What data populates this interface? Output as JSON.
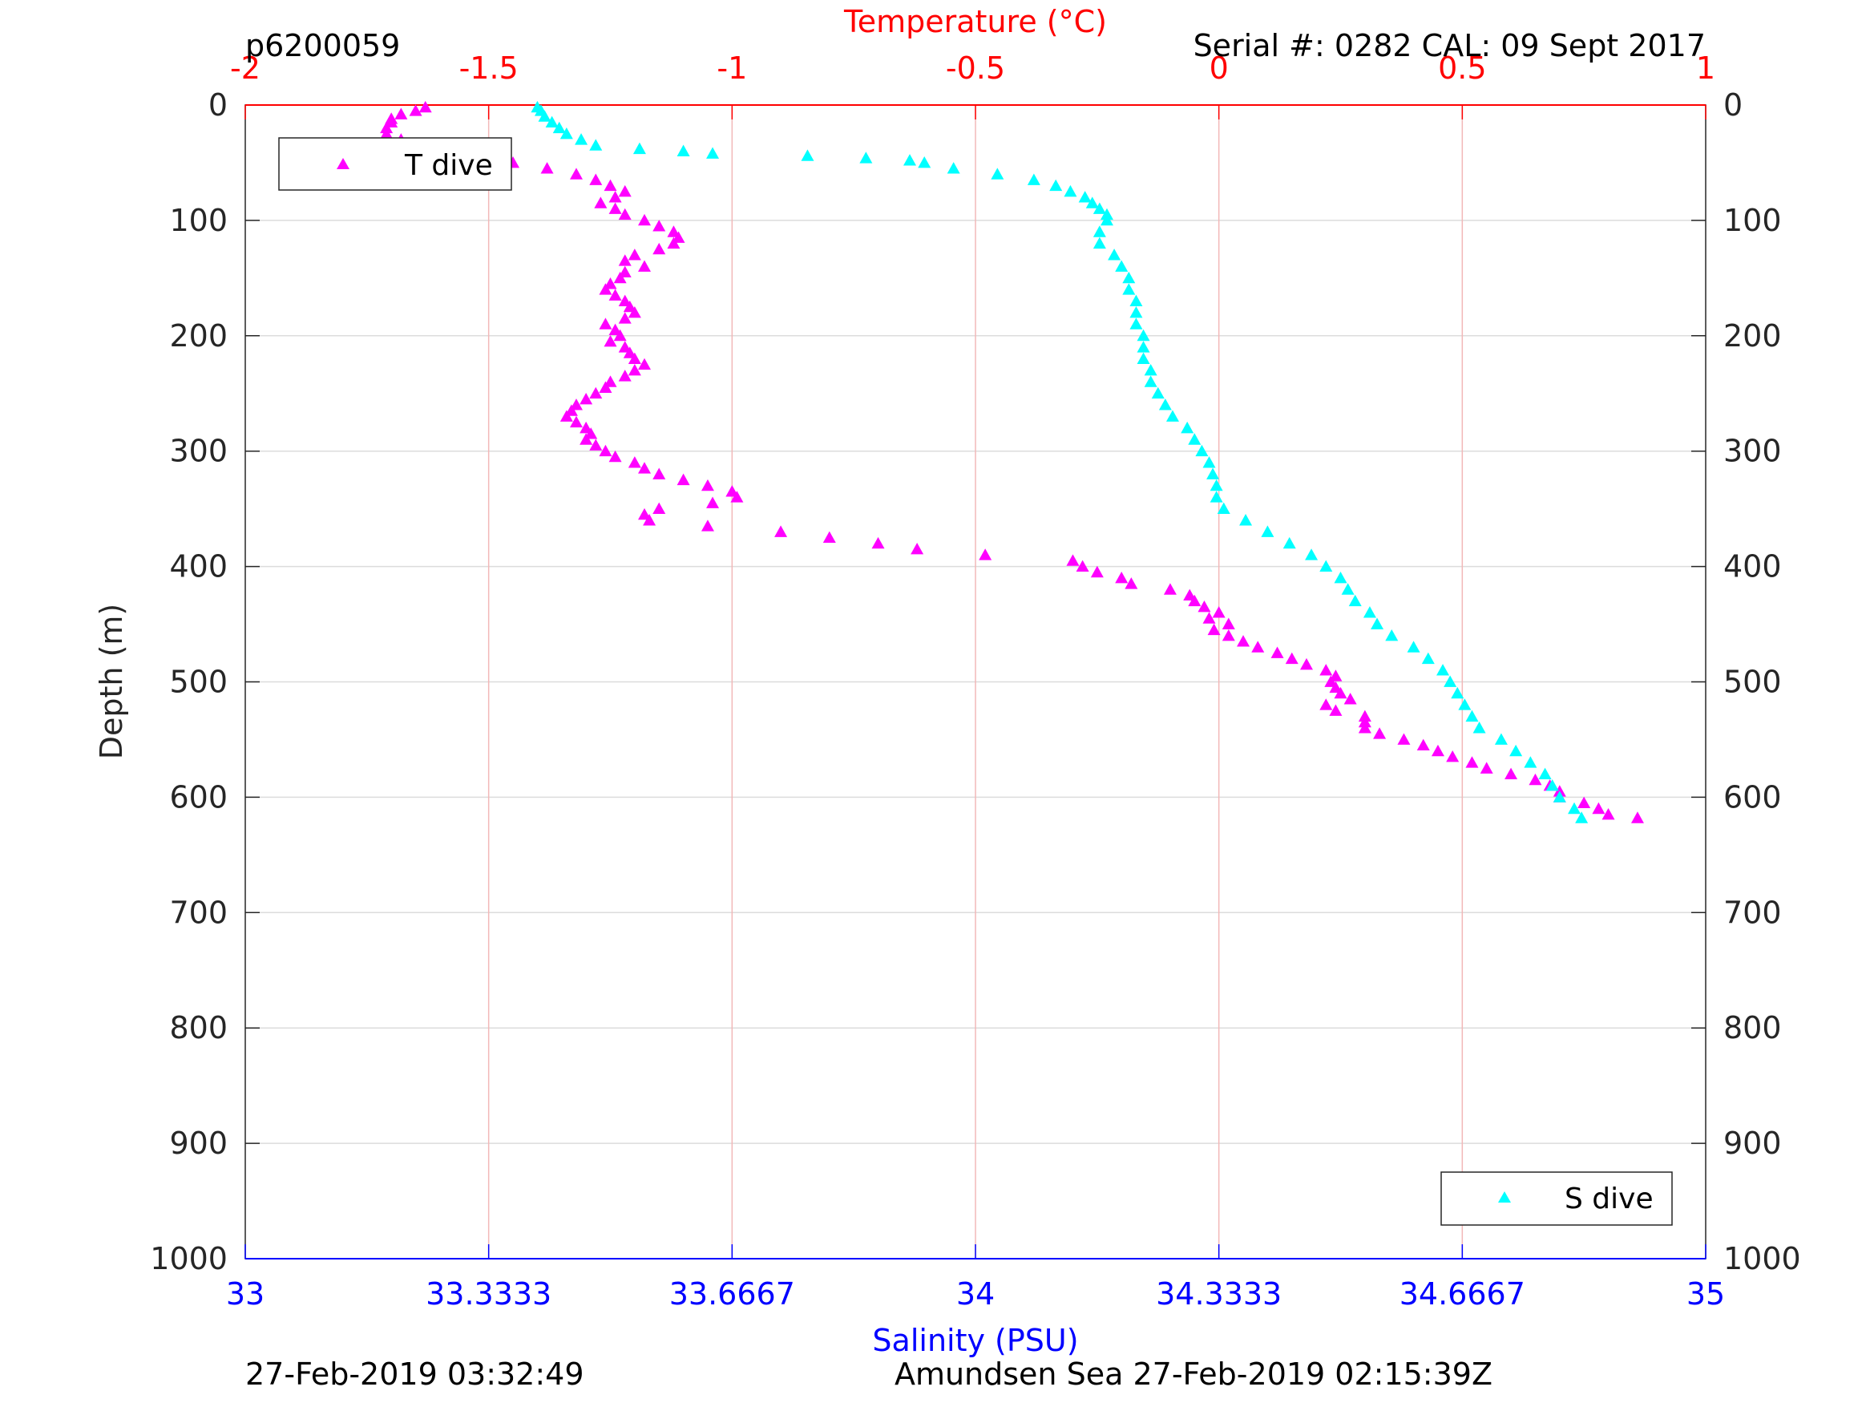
{
  "header": {
    "profile_id": "p6200059",
    "serial": "Serial #: 0282  CAL: 09 Sept 2017"
  },
  "footer": {
    "processed_time": "27-Feb-2019 03:32:49",
    "location_time": "Amundsen Sea 27-Feb-2019 02:15:39Z"
  },
  "colors": {
    "temperature": "#ff00ff",
    "salinity": "#00ffff",
    "temp_axis": "#ff0000",
    "sal_axis": "#0000ff",
    "grid": "#dcdcdc",
    "temp_grid": "#f2b8b8"
  },
  "chart_data": {
    "type": "scatter",
    "ylabel": "Depth (m)",
    "top_xlabel": "Temperature (°C)",
    "bottom_xlabel": "Salinity (PSU)",
    "ylim": [
      0,
      1000
    ],
    "y_reversed": true,
    "temp_xlim": [
      -2,
      1
    ],
    "sal_xlim": [
      33,
      35
    ],
    "y_ticks": [
      "0",
      "100",
      "200",
      "300",
      "400",
      "500",
      "600",
      "700",
      "800",
      "900",
      "1000"
    ],
    "temp_ticks": [
      "-2",
      "-1.5",
      "-1",
      "-0.5",
      "0",
      "0.5",
      "1"
    ],
    "sal_ticks": [
      "33",
      "33.3333",
      "33.6667",
      "34",
      "34.3333",
      "34.6667",
      "35"
    ],
    "legend_top_left": "T dive",
    "legend_bottom_right": "S dive",
    "temperature_series": {
      "name": "T dive",
      "depth": [
        2,
        5,
        8,
        12,
        15,
        20,
        25,
        30,
        35,
        40,
        45,
        50,
        55,
        60,
        65,
        70,
        75,
        80,
        85,
        90,
        95,
        100,
        105,
        110,
        115,
        120,
        125,
        130,
        135,
        140,
        145,
        150,
        155,
        160,
        165,
        170,
        175,
        180,
        185,
        190,
        195,
        200,
        205,
        210,
        215,
        220,
        225,
        230,
        235,
        240,
        245,
        250,
        255,
        260,
        265,
        270,
        275,
        280,
        285,
        290,
        295,
        300,
        305,
        310,
        315,
        320,
        325,
        330,
        335,
        340,
        345,
        350,
        355,
        360,
        365,
        370,
        375,
        380,
        385,
        390,
        395,
        400,
        405,
        410,
        415,
        420,
        425,
        430,
        435,
        440,
        445,
        450,
        455,
        460,
        465,
        470,
        475,
        480,
        485,
        490,
        495,
        500,
        505,
        510,
        515,
        520,
        525,
        530,
        535,
        540,
        545,
        550,
        555,
        560,
        565,
        570,
        575,
        580,
        585,
        590,
        595,
        600,
        605,
        610,
        615,
        618
      ],
      "temp": [
        -1.63,
        -1.65,
        -1.68,
        -1.7,
        -1.7,
        -1.71,
        -1.71,
        -1.68,
        -1.7,
        -1.68,
        -1.58,
        -1.45,
        -1.38,
        -1.32,
        -1.28,
        -1.25,
        -1.22,
        -1.24,
        -1.27,
        -1.24,
        -1.22,
        -1.18,
        -1.15,
        -1.12,
        -1.11,
        -1.12,
        -1.15,
        -1.2,
        -1.22,
        -1.18,
        -1.22,
        -1.23,
        -1.25,
        -1.26,
        -1.24,
        -1.22,
        -1.21,
        -1.2,
        -1.22,
        -1.26,
        -1.24,
        -1.23,
        -1.25,
        -1.22,
        -1.21,
        -1.2,
        -1.18,
        -1.2,
        -1.22,
        -1.25,
        -1.26,
        -1.28,
        -1.3,
        -1.32,
        -1.33,
        -1.34,
        -1.32,
        -1.3,
        -1.29,
        -1.3,
        -1.28,
        -1.26,
        -1.24,
        -1.2,
        -1.18,
        -1.15,
        -1.1,
        -1.05,
        -1.0,
        -0.99,
        -1.04,
        -1.15,
        -1.18,
        -1.17,
        -1.05,
        -0.9,
        -0.8,
        -0.7,
        -0.62,
        -0.48,
        -0.3,
        -0.28,
        -0.25,
        -0.2,
        -0.18,
        -0.1,
        -0.06,
        -0.05,
        -0.03,
        0.0,
        -0.02,
        0.02,
        -0.01,
        0.02,
        0.05,
        0.08,
        0.12,
        0.15,
        0.18,
        0.22,
        0.24,
        0.23,
        0.24,
        0.25,
        0.27,
        0.22,
        0.24,
        0.3,
        0.3,
        0.3,
        0.33,
        0.38,
        0.42,
        0.45,
        0.48,
        0.52,
        0.55,
        0.6,
        0.65,
        0.68,
        0.7,
        0.7,
        0.75,
        0.78,
        0.8,
        0.86
      ]
    },
    "salinity_series": {
      "name": "S dive",
      "depth": [
        2,
        5,
        10,
        15,
        20,
        25,
        30,
        35,
        38,
        40,
        42,
        44,
        46,
        48,
        50,
        55,
        60,
        65,
        70,
        75,
        80,
        85,
        90,
        95,
        100,
        110,
        120,
        130,
        140,
        150,
        160,
        170,
        180,
        190,
        200,
        210,
        220,
        230,
        240,
        250,
        260,
        270,
        280,
        290,
        300,
        310,
        320,
        330,
        340,
        350,
        360,
        370,
        380,
        390,
        400,
        410,
        420,
        430,
        440,
        450,
        460,
        470,
        480,
        490,
        500,
        510,
        520,
        530,
        540,
        550,
        560,
        570,
        580,
        590,
        600,
        610,
        618
      ],
      "sal": [
        33.4,
        33.405,
        33.41,
        33.42,
        33.43,
        33.44,
        33.46,
        33.48,
        33.54,
        33.6,
        33.64,
        33.77,
        33.85,
        33.91,
        33.93,
        33.97,
        34.03,
        34.08,
        34.11,
        34.13,
        34.15,
        34.16,
        34.17,
        34.18,
        34.18,
        34.17,
        34.17,
        34.19,
        34.2,
        34.21,
        34.21,
        34.22,
        34.22,
        34.22,
        34.23,
        34.23,
        34.23,
        34.24,
        34.24,
        34.25,
        34.26,
        34.27,
        34.29,
        34.3,
        34.31,
        34.32,
        34.325,
        34.33,
        34.33,
        34.34,
        34.37,
        34.4,
        34.43,
        34.46,
        34.48,
        34.5,
        34.51,
        34.52,
        34.54,
        34.55,
        34.57,
        34.6,
        34.62,
        34.64,
        34.65,
        34.66,
        34.67,
        34.68,
        34.69,
        34.72,
        34.74,
        34.76,
        34.78,
        34.79,
        34.8,
        34.82,
        34.83
      ]
    }
  }
}
